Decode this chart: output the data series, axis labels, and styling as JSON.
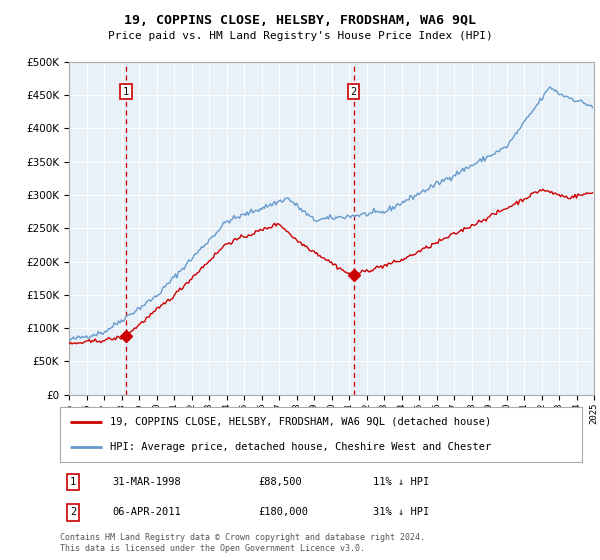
{
  "title": "19, COPPINS CLOSE, HELSBY, FRODSHAM, WA6 9QL",
  "subtitle": "Price paid vs. HM Land Registry's House Price Index (HPI)",
  "legend_property": "19, COPPINS CLOSE, HELSBY, FRODSHAM, WA6 9QL (detached house)",
  "legend_hpi": "HPI: Average price, detached house, Cheshire West and Chester",
  "annotation1_date": "31-MAR-1998",
  "annotation1_price": "£88,500",
  "annotation1_hpi": "11% ↓ HPI",
  "annotation2_date": "06-APR-2011",
  "annotation2_price": "£180,000",
  "annotation2_hpi": "31% ↓ HPI",
  "footnote": "Contains HM Land Registry data © Crown copyright and database right 2024.\nThis data is licensed under the Open Government Licence v3.0.",
  "property_color": "#cc0000",
  "hpi_color": "#6699cc",
  "background_color": "#e8f0f8",
  "sale1_x": 1998.25,
  "sale1_y": 88500,
  "sale2_x": 2011.27,
  "sale2_y": 180000,
  "xmin": 1995,
  "xmax": 2025,
  "ymin": 0,
  "ymax": 500000,
  "yticks": [
    0,
    50000,
    100000,
    150000,
    200000,
    250000,
    300000,
    350000,
    400000,
    450000,
    500000
  ]
}
